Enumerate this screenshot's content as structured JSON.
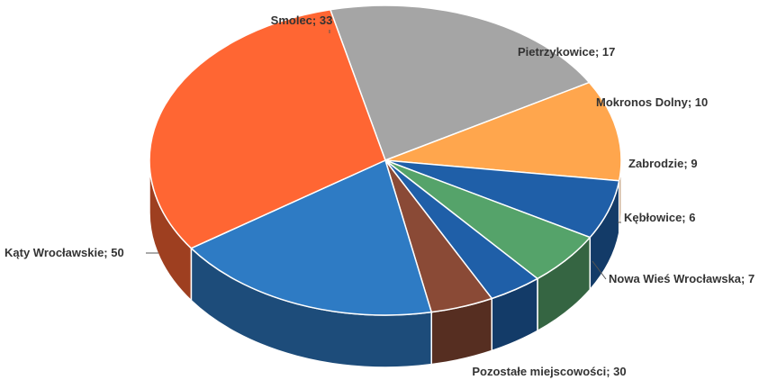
{
  "chart_data": {
    "type": "pie",
    "title": "",
    "label_format": "{name}; {value}",
    "slices": [
      {
        "name": "Smolec",
        "value": 33,
        "color": "#a5a5a5"
      },
      {
        "name": "Pietrzykowice",
        "value": 17,
        "color": "#ffa64d"
      },
      {
        "name": "Mokronos Dolny",
        "value": 10,
        "color": "#1f5fa8"
      },
      {
        "name": "Zabrodzie",
        "value": 9,
        "color": "#55a36a"
      },
      {
        "name": "Kębłowice",
        "value": 6,
        "color": "#1f5fa8"
      },
      {
        "name": "Nowa Wieś Wrocławska",
        "value": 7,
        "color": "#8a4a36"
      },
      {
        "name": "Pozostałe miejscowości",
        "value": 30,
        "color": "#2e7bc4"
      },
      {
        "name": "Kąty Wrocławskie",
        "value": 50,
        "color": "#ff6633"
      }
    ]
  }
}
